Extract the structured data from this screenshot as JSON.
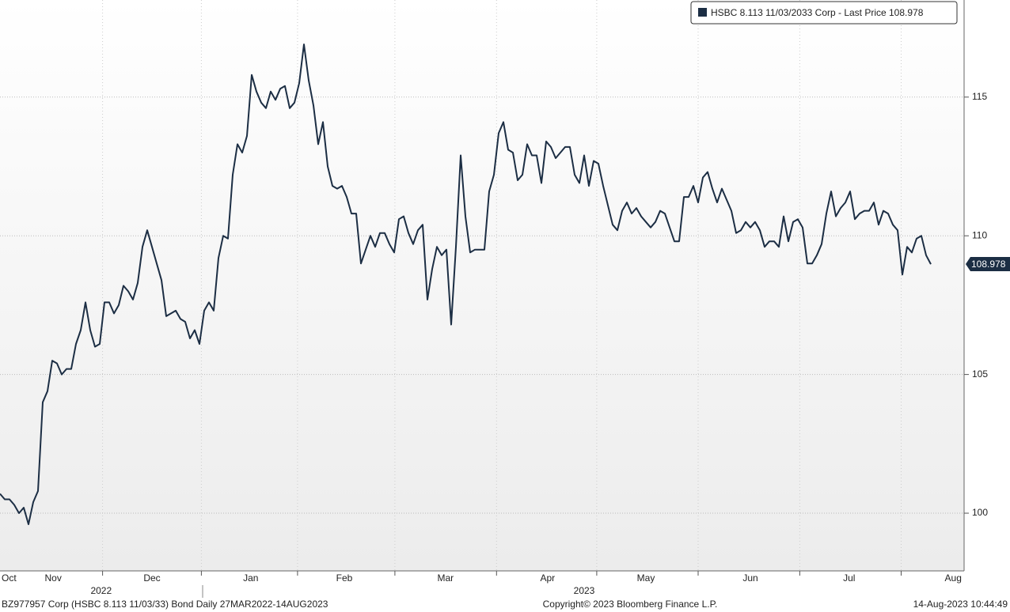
{
  "chart_data": {
    "type": "line",
    "series": [
      {
        "name": "HSBC 8.113 11/03/2033 Corp - Last Price 108.978",
        "color": "#1c2e44",
        "values": [
          100.7,
          100.5,
          100.5,
          100.3,
          100.0,
          100.2,
          99.6,
          100.4,
          100.8,
          104.0,
          104.4,
          105.5,
          105.4,
          105.0,
          105.2,
          105.2,
          106.1,
          106.6,
          107.6,
          106.6,
          106.0,
          106.1,
          107.6,
          107.6,
          107.2,
          107.5,
          108.2,
          108.0,
          107.7,
          108.3,
          109.6,
          110.2,
          109.6,
          109.0,
          108.4,
          107.1,
          107.2,
          107.3,
          107.0,
          106.9,
          106.3,
          106.6,
          106.1,
          107.3,
          107.6,
          107.3,
          109.2,
          110.0,
          109.9,
          112.2,
          113.3,
          113.0,
          113.6,
          115.8,
          115.2,
          114.8,
          114.6,
          115.2,
          114.9,
          115.3,
          115.4,
          114.6,
          114.8,
          115.5,
          116.9,
          115.6,
          114.7,
          113.3,
          114.1,
          112.5,
          111.8,
          111.7,
          111.8,
          111.4,
          110.8,
          110.8,
          109.0,
          109.5,
          110.0,
          109.6,
          110.1,
          110.1,
          109.7,
          109.4,
          110.6,
          110.7,
          110.1,
          109.7,
          110.2,
          110.4,
          107.7,
          108.8,
          109.6,
          109.3,
          109.5,
          106.8,
          109.6,
          112.9,
          110.7,
          109.4,
          109.5,
          109.5,
          109.5,
          111.6,
          112.2,
          113.7,
          114.1,
          113.1,
          113.0,
          112.0,
          112.2,
          113.3,
          112.9,
          112.9,
          111.9,
          113.4,
          113.2,
          112.8,
          113.0,
          113.2,
          113.2,
          112.2,
          111.9,
          112.9,
          111.8,
          112.7,
          112.6,
          111.8,
          111.1,
          110.4,
          110.2,
          110.9,
          111.2,
          110.8,
          111.0,
          110.7,
          110.5,
          110.3,
          110.5,
          110.9,
          110.8,
          110.3,
          109.8,
          109.8,
          111.4,
          111.4,
          111.8,
          111.2,
          112.1,
          112.3,
          111.7,
          111.2,
          111.7,
          111.3,
          110.9,
          110.1,
          110.2,
          110.5,
          110.3,
          110.5,
          110.2,
          109.6,
          109.8,
          109.8,
          109.6,
          110.7,
          109.8,
          110.5,
          110.6,
          110.3,
          109.0,
          109.0,
          109.3,
          109.7,
          110.8,
          111.6,
          110.7,
          111.0,
          111.2,
          111.6,
          110.6,
          110.8,
          110.9,
          110.9,
          111.2,
          110.4,
          110.9,
          110.8,
          110.4,
          110.2,
          108.6,
          109.6,
          109.4,
          109.9,
          110.0,
          109.3,
          108.978
        ]
      }
    ],
    "ylim": [
      97.92,
      118.5
    ],
    "yticks": [
      100,
      105,
      110,
      115
    ],
    "grid": true,
    "xlim": [
      0,
      203
    ],
    "months": [
      {
        "value": 2,
        "label": "Oct"
      },
      {
        "value": 11.2,
        "label": "Nov"
      },
      {
        "value": 32,
        "label": "Dec"
      },
      {
        "value": 52.8,
        "label": "Jan"
      },
      {
        "value": 72.5,
        "label": "Feb"
      },
      {
        "value": 93.8,
        "label": "Mar"
      },
      {
        "value": 115.3,
        "label": "Apr"
      },
      {
        "value": 136,
        "label": "May"
      },
      {
        "value": 158,
        "label": "Jun"
      },
      {
        "value": 178.8,
        "label": "Jul"
      },
      {
        "value": 200.7,
        "label": "Aug"
      }
    ],
    "years": [
      {
        "value": 21.3,
        "label": "2022"
      },
      {
        "value": 123,
        "label": "2023"
      }
    ],
    "footer_left": "BZ977957 Corp (HSBC 8.113 11/03/33) Bond  Daily 27MAR2022-14AUG2023",
    "footer_center": "Copyright© 2023 Bloomberg Finance L.P.",
    "footer_right": "14-Aug-2023 10:44:49"
  }
}
